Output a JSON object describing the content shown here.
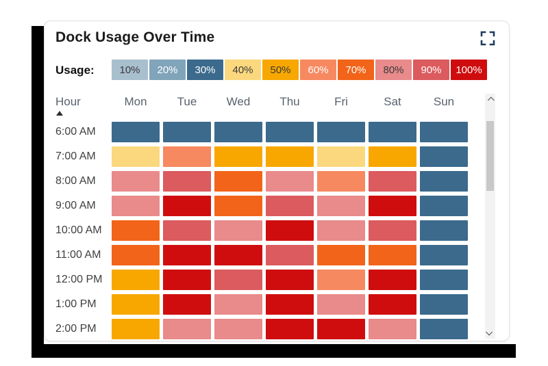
{
  "card": {
    "title": "Dock Usage Over Time",
    "legend_label": "Usage:"
  },
  "icons": {
    "expand": "fullscreen-expand",
    "sort": "sort-ascending-triangle",
    "scroll_up": "chevron-up",
    "scroll_down": "chevron-down"
  },
  "colors": {
    "icon_navy": "#1e3a5f",
    "title_text": "#1b1b1b",
    "header_text": "#59626d",
    "hour_text": "#3f3f3f",
    "card_border": "#e0e0e0",
    "shadow_black": "#000000",
    "scroll_track": "#f2f2f2",
    "scroll_thumb": "#c8c8c8"
  },
  "chart_data": {
    "type": "heatmap",
    "title": "Dock Usage Over Time",
    "unit": "%",
    "y_label_header": "Hour",
    "sort": {
      "column": "Hour",
      "direction": "ascending"
    },
    "x_labels": [
      "Mon",
      "Tue",
      "Wed",
      "Thu",
      "Fri",
      "Sat",
      "Sun"
    ],
    "y_labels": [
      "6:00 AM",
      "7:00 AM",
      "8:00 AM",
      "9:00 AM",
      "10:00 AM",
      "11:00 AM",
      "12:00 PM",
      "1:00 PM",
      "2:00 PM"
    ],
    "values": [
      [
        30,
        30,
        30,
        30,
        30,
        30,
        30
      ],
      [
        40,
        60,
        50,
        50,
        40,
        50,
        30
      ],
      [
        80,
        90,
        70,
        80,
        60,
        90,
        30
      ],
      [
        80,
        100,
        70,
        90,
        80,
        100,
        30
      ],
      [
        70,
        90,
        80,
        100,
        80,
        90,
        30
      ],
      [
        70,
        100,
        100,
        90,
        70,
        70,
        30
      ],
      [
        50,
        100,
        90,
        100,
        60,
        100,
        30
      ],
      [
        50,
        100,
        80,
        100,
        80,
        100,
        30
      ],
      [
        50,
        80,
        80,
        100,
        100,
        80,
        30
      ]
    ],
    "legend": [
      {
        "label": "10%",
        "value": 10,
        "color": "#a8bfce",
        "text_color": "#3a3a3a"
      },
      {
        "label": "20%",
        "value": 20,
        "color": "#80a4ba",
        "text_color": "#ffffff"
      },
      {
        "label": "30%",
        "value": 30,
        "color": "#3b6a8d",
        "text_color": "#ffffff"
      },
      {
        "label": "40%",
        "value": 40,
        "color": "#fbd87e",
        "text_color": "#3a3a3a"
      },
      {
        "label": "50%",
        "value": 50,
        "color": "#f7a700",
        "text_color": "#3a3a3a"
      },
      {
        "label": "60%",
        "value": 60,
        "color": "#f68960",
        "text_color": "#ffffff"
      },
      {
        "label": "70%",
        "value": 70,
        "color": "#f26419",
        "text_color": "#ffffff"
      },
      {
        "label": "80%",
        "value": 80,
        "color": "#e98a8b",
        "text_color": "#3a3a3a"
      },
      {
        "label": "90%",
        "value": 90,
        "color": "#db5b5e",
        "text_color": "#ffffff"
      },
      {
        "label": "100%",
        "value": 100,
        "color": "#cf0d0e",
        "text_color": "#ffffff"
      }
    ]
  }
}
